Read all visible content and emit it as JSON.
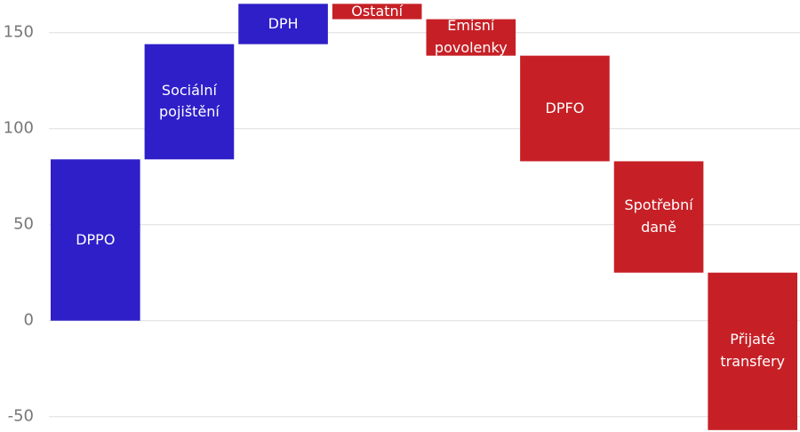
{
  "chart_data": {
    "type": "waterfall",
    "categories": [
      "DPPO",
      "Sociální pojištění",
      "DPH",
      "Ostatní",
      "Emisní povolenky",
      "DPFO",
      "Spotřební daně",
      "Přijaté transfery"
    ],
    "values": [
      84,
      60,
      21,
      -8,
      -19,
      -55,
      -58,
      -82
    ],
    "increase_color": "#2e1fc8",
    "decrease_color": "#c62026",
    "ylim": [
      -58,
      167
    ],
    "yticks": [
      -50,
      0,
      50,
      100,
      150
    ],
    "grid": true
  }
}
